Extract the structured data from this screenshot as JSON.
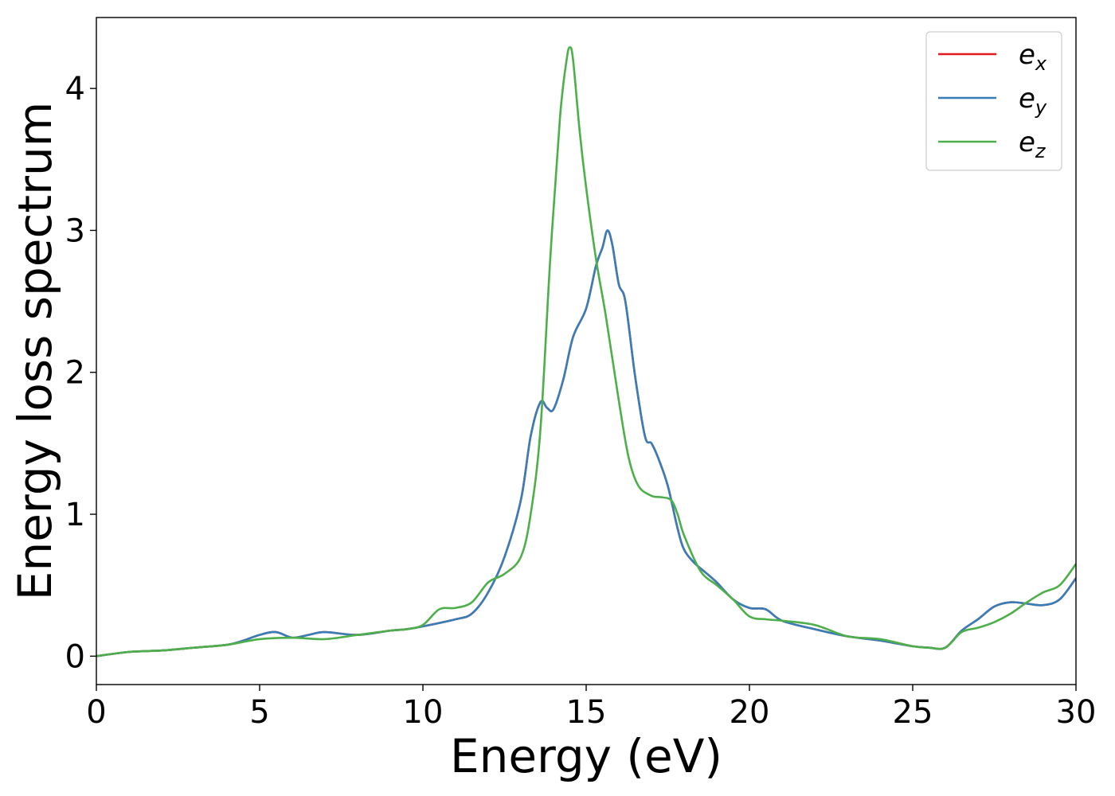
{
  "chart_data": {
    "type": "line",
    "title": "",
    "xlabel": "Energy (eV)",
    "ylabel": "Energy loss spectrum",
    "xlim": [
      0,
      30
    ],
    "ylim": [
      -0.2,
      4.5
    ],
    "xticks": [
      0,
      5,
      10,
      15,
      20,
      25,
      30
    ],
    "yticks": [
      0,
      1,
      2,
      3,
      4
    ],
    "grid": false,
    "legend_position": "top-right",
    "series": [
      {
        "name": "e",
        "subscript": "x",
        "color": "#e41a1c",
        "x": [
          0,
          1,
          2,
          3,
          4,
          4.5,
          5,
          5.5,
          6,
          6.5,
          7,
          8,
          9,
          9.5,
          10,
          11,
          11.5,
          12,
          12.5,
          13,
          13.3,
          13.6,
          13.8,
          14,
          14.3,
          14.6,
          15,
          15.3,
          15.5,
          15.65,
          15.8,
          16,
          16.2,
          16.5,
          16.8,
          17,
          17.2,
          17.5,
          17.8,
          18,
          18.3,
          18.6,
          19,
          19.5,
          20,
          20.5,
          21,
          22,
          23,
          24,
          25,
          25.5,
          26,
          26.5,
          27,
          27.5,
          28,
          28.5,
          29,
          29.5,
          30
        ],
        "y": [
          0.0,
          0.03,
          0.04,
          0.06,
          0.08,
          0.11,
          0.15,
          0.17,
          0.13,
          0.15,
          0.17,
          0.15,
          0.18,
          0.19,
          0.21,
          0.26,
          0.3,
          0.45,
          0.7,
          1.1,
          1.55,
          1.79,
          1.75,
          1.74,
          1.95,
          2.25,
          2.45,
          2.75,
          2.88,
          3.0,
          2.9,
          2.62,
          2.5,
          1.97,
          1.55,
          1.5,
          1.4,
          1.2,
          0.9,
          0.75,
          0.66,
          0.6,
          0.52,
          0.4,
          0.34,
          0.33,
          0.25,
          0.19,
          0.14,
          0.11,
          0.07,
          0.06,
          0.06,
          0.18,
          0.26,
          0.35,
          0.38,
          0.37,
          0.36,
          0.4,
          0.55
        ]
      },
      {
        "name": "e",
        "subscript": "y",
        "color": "#377eb8",
        "x": [
          0,
          1,
          2,
          3,
          4,
          4.5,
          5,
          5.5,
          6,
          6.5,
          7,
          8,
          9,
          9.5,
          10,
          11,
          11.5,
          12,
          12.5,
          13,
          13.3,
          13.6,
          13.8,
          14,
          14.3,
          14.6,
          15,
          15.3,
          15.5,
          15.65,
          15.8,
          16,
          16.2,
          16.5,
          16.8,
          17,
          17.2,
          17.5,
          17.8,
          18,
          18.3,
          18.6,
          19,
          19.5,
          20,
          20.5,
          21,
          22,
          23,
          24,
          25,
          25.5,
          26,
          26.5,
          27,
          27.5,
          28,
          28.5,
          29,
          29.5,
          30
        ],
        "y": [
          0.0,
          0.03,
          0.04,
          0.06,
          0.08,
          0.11,
          0.15,
          0.17,
          0.13,
          0.15,
          0.17,
          0.15,
          0.18,
          0.19,
          0.21,
          0.26,
          0.3,
          0.45,
          0.7,
          1.1,
          1.55,
          1.79,
          1.75,
          1.74,
          1.95,
          2.25,
          2.45,
          2.75,
          2.88,
          3.0,
          2.9,
          2.62,
          2.5,
          1.97,
          1.55,
          1.5,
          1.4,
          1.2,
          0.9,
          0.75,
          0.66,
          0.6,
          0.52,
          0.4,
          0.34,
          0.33,
          0.25,
          0.19,
          0.14,
          0.11,
          0.07,
          0.06,
          0.06,
          0.18,
          0.26,
          0.35,
          0.38,
          0.37,
          0.36,
          0.4,
          0.55
        ]
      },
      {
        "name": "e",
        "subscript": "z",
        "color": "#4daf4a",
        "x": [
          0,
          1,
          2,
          3,
          4,
          5,
          6,
          7,
          8,
          9,
          9.5,
          10,
          10.5,
          11,
          11.5,
          12,
          12.5,
          13,
          13.3,
          13.6,
          13.9,
          14.2,
          14.4,
          14.5,
          14.6,
          14.8,
          15,
          15.3,
          15.6,
          16,
          16.3,
          16.6,
          17,
          17.3,
          17.6,
          17.8,
          18,
          18.5,
          19,
          19.5,
          20,
          20.5,
          21,
          22,
          23,
          24,
          25,
          25.5,
          26,
          26.5,
          27,
          27.5,
          28,
          28.5,
          29,
          29.5,
          30
        ],
        "y": [
          0.0,
          0.03,
          0.04,
          0.06,
          0.08,
          0.12,
          0.13,
          0.12,
          0.15,
          0.18,
          0.19,
          0.22,
          0.33,
          0.34,
          0.38,
          0.52,
          0.58,
          0.7,
          1.0,
          1.6,
          2.8,
          3.8,
          4.2,
          4.29,
          4.2,
          3.7,
          3.3,
          2.8,
          2.4,
          1.8,
          1.4,
          1.2,
          1.13,
          1.12,
          1.1,
          1.0,
          0.85,
          0.6,
          0.5,
          0.4,
          0.28,
          0.26,
          0.25,
          0.22,
          0.14,
          0.12,
          0.07,
          0.06,
          0.06,
          0.17,
          0.2,
          0.24,
          0.3,
          0.38,
          0.45,
          0.5,
          0.65
        ]
      }
    ]
  }
}
